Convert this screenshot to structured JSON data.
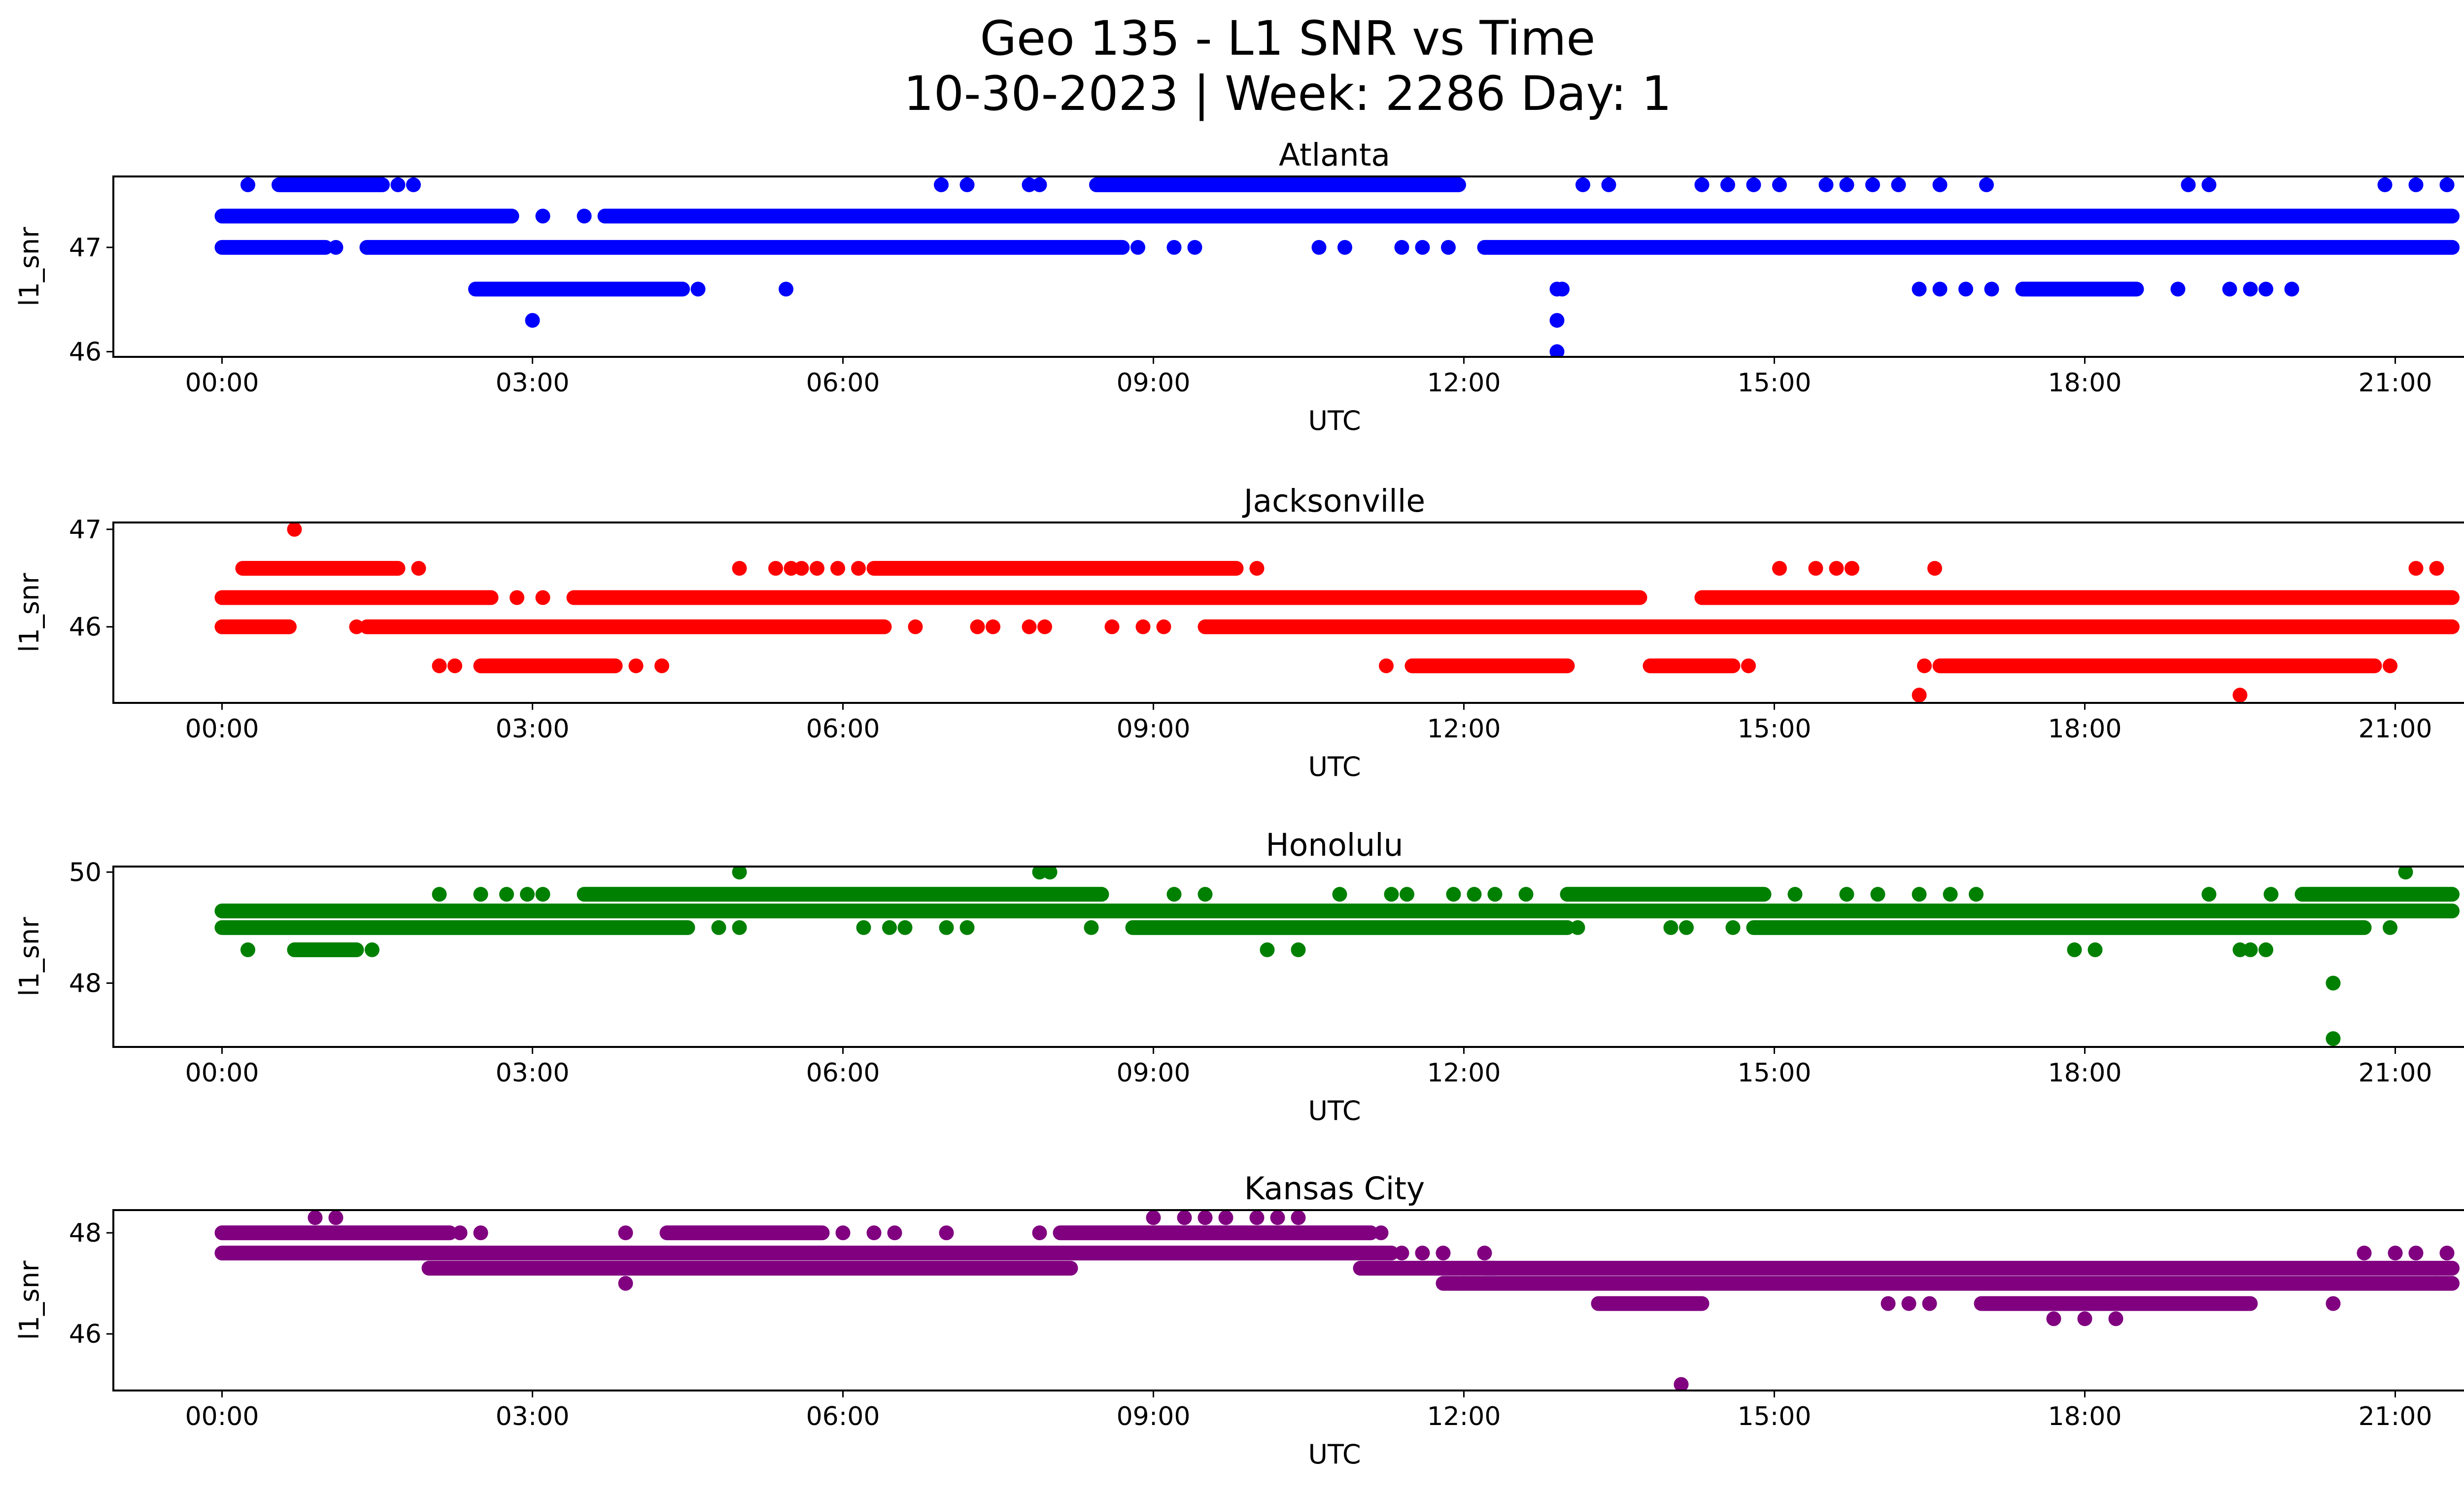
{
  "figure": {
    "title_line1": "Geo 135 - L1 SNR vs Time",
    "title_line2": "10-30-2023 | Week: 2286 Day: 1"
  },
  "chart_data": [
    {
      "type": "scatter",
      "title": "Atlanta",
      "color": "#0000ff",
      "xlabel": "UTC",
      "ylabel": "l1_snr",
      "xlim": [
        -1.05,
        22.55
      ],
      "ylim": [
        45.95,
        47.68
      ],
      "xticks": [
        "00:00",
        "03:00",
        "06:00",
        "09:00",
        "12:00",
        "15:00",
        "18:00",
        "21:00"
      ],
      "yticks": [
        46,
        47
      ],
      "bands": [
        {
          "y": 47.3,
          "segments": [
            [
              0.0,
              2.8
            ],
            [
              3.7,
              21.55
            ]
          ]
        },
        {
          "y": 47.0,
          "segments": [
            [
              0.0,
              1.0
            ],
            [
              1.4,
              8.7
            ],
            [
              12.2,
              21.55
            ]
          ]
        },
        {
          "y": 47.6,
          "segments": [
            [
              0.55,
              1.55
            ],
            [
              8.45,
              11.95
            ]
          ]
        },
        {
          "y": 46.6,
          "segments": [
            [
              2.45,
              4.45
            ],
            [
              17.4,
              18.5
            ]
          ]
        }
      ],
      "points": [
        [
          0.25,
          47.6
        ],
        [
          1.7,
          47.6
        ],
        [
          1.85,
          47.6
        ],
        [
          6.95,
          47.6
        ],
        [
          7.2,
          47.6
        ],
        [
          7.8,
          47.6
        ],
        [
          7.9,
          47.6
        ],
        [
          13.15,
          47.6
        ],
        [
          13.4,
          47.6
        ],
        [
          14.3,
          47.6
        ],
        [
          14.55,
          47.6
        ],
        [
          14.8,
          47.6
        ],
        [
          15.05,
          47.6
        ],
        [
          15.5,
          47.6
        ],
        [
          15.7,
          47.6
        ],
        [
          15.95,
          47.6
        ],
        [
          16.2,
          47.6
        ],
        [
          16.6,
          47.6
        ],
        [
          17.05,
          47.6
        ],
        [
          19.0,
          47.6
        ],
        [
          19.2,
          47.6
        ],
        [
          20.9,
          47.6
        ],
        [
          21.2,
          47.6
        ],
        [
          21.5,
          47.6
        ],
        [
          3.1,
          47.3
        ],
        [
          3.5,
          47.3
        ],
        [
          1.1,
          47.0
        ],
        [
          8.85,
          47.0
        ],
        [
          9.2,
          47.0
        ],
        [
          9.4,
          47.0
        ],
        [
          10.6,
          47.0
        ],
        [
          10.85,
          47.0
        ],
        [
          11.4,
          47.0
        ],
        [
          11.6,
          47.0
        ],
        [
          11.85,
          47.0
        ],
        [
          4.6,
          46.6
        ],
        [
          5.45,
          46.6
        ],
        [
          16.4,
          46.6
        ],
        [
          16.6,
          46.6
        ],
        [
          16.85,
          46.6
        ],
        [
          17.1,
          46.6
        ],
        [
          18.9,
          46.6
        ],
        [
          19.4,
          46.6
        ],
        [
          19.6,
          46.6
        ],
        [
          19.75,
          46.6
        ],
        [
          20.0,
          46.6
        ],
        [
          12.9,
          46.6
        ],
        [
          12.95,
          46.6
        ],
        [
          3.0,
          46.3
        ],
        [
          12.9,
          46.3
        ],
        [
          12.9,
          46.0
        ]
      ]
    },
    {
      "type": "scatter",
      "title": "Jacksonville",
      "color": "#ff0000",
      "xlabel": "UTC",
      "ylabel": "l1_snr",
      "xlim": [
        -1.05,
        22.55
      ],
      "ylim": [
        45.22,
        47.07
      ],
      "xticks": [
        "00:00",
        "03:00",
        "06:00",
        "09:00",
        "12:00",
        "15:00",
        "18:00",
        "21:00"
      ],
      "yticks": [
        46,
        47
      ],
      "bands": [
        {
          "y": 46.3,
          "segments": [
            [
              0.0,
              2.6
            ],
            [
              3.4,
              13.7
            ],
            [
              14.3,
              21.55
            ]
          ]
        },
        {
          "y": 46.0,
          "segments": [
            [
              0.0,
              0.65
            ],
            [
              1.4,
              6.4
            ],
            [
              9.5,
              21.55
            ]
          ]
        },
        {
          "y": 46.6,
          "segments": [
            [
              0.2,
              1.7
            ],
            [
              6.3,
              9.8
            ]
          ]
        },
        {
          "y": 45.6,
          "segments": [
            [
              2.5,
              3.8
            ],
            [
              11.5,
              13.0
            ],
            [
              13.8,
              14.6
            ],
            [
              16.6,
              20.8
            ]
          ]
        }
      ],
      "points": [
        [
          0.7,
          47.0
        ],
        [
          1.9,
          46.6
        ],
        [
          5.0,
          46.6
        ],
        [
          5.35,
          46.6
        ],
        [
          5.5,
          46.6
        ],
        [
          5.6,
          46.6
        ],
        [
          5.75,
          46.6
        ],
        [
          5.95,
          46.6
        ],
        [
          6.15,
          46.6
        ],
        [
          10.0,
          46.6
        ],
        [
          15.05,
          46.6
        ],
        [
          15.4,
          46.6
        ],
        [
          15.6,
          46.6
        ],
        [
          15.75,
          46.6
        ],
        [
          16.55,
          46.6
        ],
        [
          21.2,
          46.6
        ],
        [
          21.4,
          46.6
        ],
        [
          3.1,
          46.3
        ],
        [
          2.85,
          46.3
        ],
        [
          1.3,
          46.0
        ],
        [
          6.7,
          46.0
        ],
        [
          7.3,
          46.0
        ],
        [
          7.45,
          46.0
        ],
        [
          7.8,
          46.0
        ],
        [
          7.95,
          46.0
        ],
        [
          8.6,
          46.0
        ],
        [
          8.9,
          46.0
        ],
        [
          9.1,
          46.0
        ],
        [
          2.1,
          45.6
        ],
        [
          2.25,
          45.6
        ],
        [
          4.0,
          45.6
        ],
        [
          4.25,
          45.6
        ],
        [
          11.25,
          45.6
        ],
        [
          14.75,
          45.6
        ],
        [
          16.45,
          45.6
        ],
        [
          20.95,
          45.6
        ],
        [
          16.4,
          45.3
        ],
        [
          19.5,
          45.3
        ]
      ]
    },
    {
      "type": "scatter",
      "title": "Honolulu",
      "color": "#008000",
      "xlabel": "UTC",
      "ylabel": "l1_snr",
      "xlim": [
        -1.05,
        22.55
      ],
      "ylim": [
        46.85,
        50.1
      ],
      "xticks": [
        "00:00",
        "03:00",
        "06:00",
        "09:00",
        "12:00",
        "15:00",
        "18:00",
        "21:00"
      ],
      "yticks": [
        48,
        50
      ],
      "bands": [
        {
          "y": 49.3,
          "segments": [
            [
              0.0,
              21.55
            ]
          ]
        },
        {
          "y": 49.0,
          "segments": [
            [
              0.0,
              4.5
            ],
            [
              8.8,
              13.0
            ],
            [
              14.8,
              20.7
            ]
          ]
        },
        {
          "y": 49.6,
          "segments": [
            [
              3.5,
              8.5
            ],
            [
              13.0,
              14.9
            ],
            [
              20.1,
              21.55
            ]
          ]
        },
        {
          "y": 48.6,
          "segments": [
            [
              0.7,
              1.3
            ]
          ]
        }
      ],
      "points": [
        [
          2.1,
          49.6
        ],
        [
          2.5,
          49.6
        ],
        [
          2.75,
          49.6
        ],
        [
          2.95,
          49.6
        ],
        [
          3.1,
          49.6
        ],
        [
          9.2,
          49.6
        ],
        [
          9.5,
          49.6
        ],
        [
          10.8,
          49.6
        ],
        [
          11.3,
          49.6
        ],
        [
          11.45,
          49.6
        ],
        [
          11.9,
          49.6
        ],
        [
          12.1,
          49.6
        ],
        [
          12.3,
          49.6
        ],
        [
          12.6,
          49.6
        ],
        [
          15.2,
          49.6
        ],
        [
          15.7,
          49.6
        ],
        [
          16.0,
          49.6
        ],
        [
          16.4,
          49.6
        ],
        [
          16.7,
          49.6
        ],
        [
          16.95,
          49.6
        ],
        [
          19.2,
          49.6
        ],
        [
          19.8,
          49.6
        ],
        [
          5.0,
          50.0
        ],
        [
          7.9,
          50.0
        ],
        [
          8.0,
          50.0
        ],
        [
          21.1,
          50.0
        ],
        [
          4.8,
          49.0
        ],
        [
          5.0,
          49.0
        ],
        [
          6.2,
          49.0
        ],
        [
          6.45,
          49.0
        ],
        [
          6.6,
          49.0
        ],
        [
          7.0,
          49.0
        ],
        [
          7.2,
          49.0
        ],
        [
          8.4,
          49.0
        ],
        [
          13.1,
          49.0
        ],
        [
          14.0,
          49.0
        ],
        [
          14.15,
          49.0
        ],
        [
          14.6,
          49.0
        ],
        [
          20.95,
          49.0
        ],
        [
          0.25,
          48.6
        ],
        [
          1.45,
          48.6
        ],
        [
          10.1,
          48.6
        ],
        [
          10.4,
          48.6
        ],
        [
          17.9,
          48.6
        ],
        [
          18.1,
          48.6
        ],
        [
          19.5,
          48.6
        ],
        [
          19.6,
          48.6
        ],
        [
          19.75,
          48.6
        ],
        [
          20.4,
          48.0
        ],
        [
          20.4,
          47.0
        ]
      ]
    },
    {
      "type": "scatter",
      "title": "Kansas City",
      "color": "#800080",
      "xlabel": "UTC",
      "ylabel": "l1_snr",
      "xlim": [
        -1.05,
        22.55
      ],
      "ylim": [
        44.88,
        48.45
      ],
      "xticks": [
        "00:00",
        "03:00",
        "06:00",
        "09:00",
        "12:00",
        "15:00",
        "18:00",
        "21:00"
      ],
      "yticks": [
        46,
        48
      ],
      "bands": [
        {
          "y": 48.0,
          "segments": [
            [
              0.0,
              2.2
            ],
            [
              4.3,
              5.8
            ],
            [
              8.1,
              11.1
            ]
          ]
        },
        {
          "y": 47.6,
          "segments": [
            [
              0.0,
              11.3
            ]
          ]
        },
        {
          "y": 47.3,
          "segments": [
            [
              2.0,
              8.2
            ],
            [
              11.0,
              12.3
            ],
            [
              12.2,
              21.55
            ]
          ]
        },
        {
          "y": 47.0,
          "segments": [
            [
              11.8,
              21.55
            ]
          ]
        },
        {
          "y": 46.6,
          "segments": [
            [
              13.3,
              14.3
            ],
            [
              17.0,
              19.6
            ]
          ]
        }
      ],
      "points": [
        [
          0.9,
          48.3
        ],
        [
          1.1,
          48.3
        ],
        [
          9.0,
          48.3
        ],
        [
          9.3,
          48.3
        ],
        [
          9.5,
          48.3
        ],
        [
          9.7,
          48.3
        ],
        [
          10.0,
          48.3
        ],
        [
          10.2,
          48.3
        ],
        [
          10.4,
          48.3
        ],
        [
          2.3,
          48.0
        ],
        [
          2.5,
          48.0
        ],
        [
          3.9,
          48.0
        ],
        [
          6.0,
          48.0
        ],
        [
          6.3,
          48.0
        ],
        [
          6.5,
          48.0
        ],
        [
          7.0,
          48.0
        ],
        [
          7.9,
          48.0
        ],
        [
          11.2,
          48.0
        ],
        [
          11.4,
          47.6
        ],
        [
          11.6,
          47.6
        ],
        [
          11.8,
          47.6
        ],
        [
          12.2,
          47.6
        ],
        [
          20.7,
          47.6
        ],
        [
          21.0,
          47.6
        ],
        [
          21.2,
          47.6
        ],
        [
          21.5,
          47.6
        ],
        [
          3.9,
          47.0
        ],
        [
          12.0,
          47.0
        ],
        [
          21.4,
          47.0
        ],
        [
          16.1,
          46.6
        ],
        [
          16.3,
          46.6
        ],
        [
          16.5,
          46.6
        ],
        [
          20.4,
          46.6
        ],
        [
          17.7,
          46.3
        ],
        [
          18.0,
          46.3
        ],
        [
          18.3,
          46.3
        ],
        [
          14.1,
          45.0
        ]
      ]
    }
  ]
}
